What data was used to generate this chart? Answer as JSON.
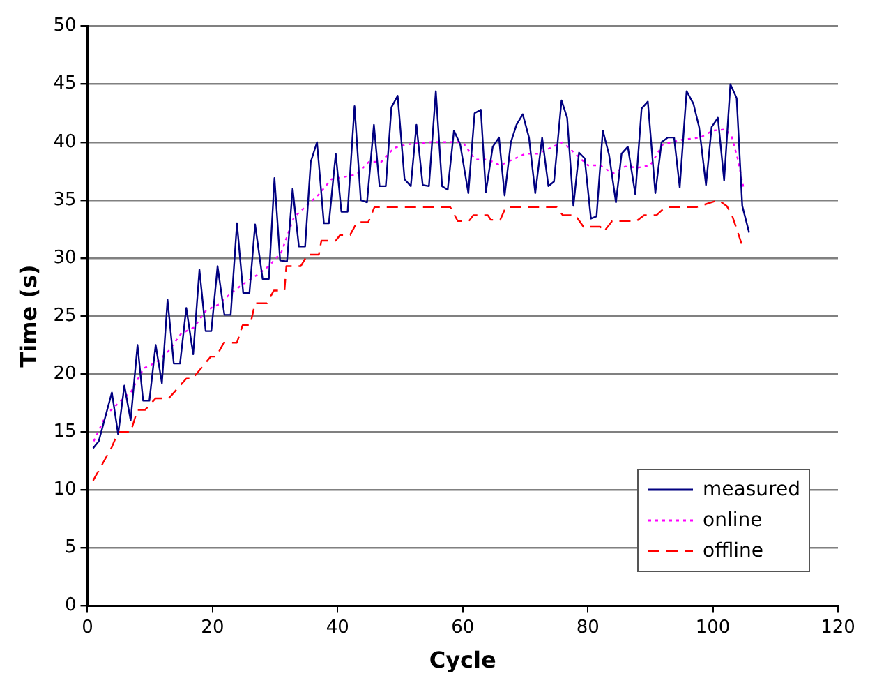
{
  "chart_data": {
    "type": "line",
    "xlabel": "Cycle",
    "ylabel": "Time (s)",
    "xlim": [
      0,
      120
    ],
    "xticks": [
      0,
      20,
      40,
      60,
      80,
      100,
      120
    ],
    "ylim": [
      0,
      50
    ],
    "yticks": [
      0,
      5,
      10,
      15,
      20,
      25,
      30,
      35,
      40,
      45,
      50
    ],
    "grid": "y",
    "legend": "bottom right",
    "marker": "none",
    "series": [
      {
        "name": "measured",
        "color": "#000080",
        "line_style": "solid",
        "x": [
          0.9,
          1.8,
          3.9,
          4.9,
          5.9,
          6.9,
          8,
          8.9,
          9.9,
          10.9,
          11.9,
          12.8,
          13.8,
          14.8,
          15.8,
          16.9,
          17.9,
          18.9,
          19.8,
          20.8,
          21.9,
          22.9,
          23.9,
          24.9,
          25.9,
          26.8,
          28,
          29,
          29.9,
          30.8,
          31.9,
          32.8,
          33.8,
          34.8,
          35.7,
          36.7,
          37.8,
          38.6,
          39.7,
          40.6,
          41.6,
          42.7,
          43.7,
          44.7,
          45.8,
          46.7,
          47.7,
          48.6,
          49.6,
          50.7,
          51.7,
          52.6,
          53.6,
          54.6,
          55.7,
          56.7,
          57.6,
          58.6,
          59.6,
          60.9,
          61.9,
          62.9,
          63.7,
          64.8,
          65.8,
          66.7,
          67.7,
          68.6,
          69.6,
          70.6,
          71.6,
          72.7,
          73.7,
          74.6,
          75.8,
          76.7,
          77.7,
          78.6,
          79.5,
          80.5,
          81.4,
          82.4,
          83.4,
          84.5,
          85.4,
          86.4,
          87.6,
          88.6,
          89.6,
          90.8,
          91.8,
          92.8,
          93.8,
          94.7,
          95.8,
          96.9,
          97.8,
          98.9,
          99.8,
          100.8,
          101.8,
          102.8,
          103.8,
          104.7,
          105.8
        ],
        "values": [
          13.6,
          14.2,
          18.4,
          14.8,
          19,
          16,
          22.5,
          17.7,
          17.7,
          22.5,
          19.2,
          26.4,
          20.9,
          20.9,
          25.7,
          21.7,
          29,
          23.7,
          23.7,
          29.3,
          25.1,
          25.1,
          33,
          27,
          27,
          32.9,
          28.2,
          28.2,
          36.9,
          29.8,
          29.7,
          36,
          31,
          31,
          38.3,
          40,
          33,
          33,
          39,
          34,
          34,
          43.1,
          35,
          34.8,
          41.5,
          36.2,
          36.2,
          43,
          44,
          36.8,
          36.2,
          41.5,
          36.3,
          36.2,
          44.4,
          36.2,
          35.9,
          41,
          39.8,
          35.6,
          42.5,
          42.8,
          35.7,
          39.6,
          40.4,
          35.4,
          40,
          41.5,
          42.4,
          40.4,
          35.6,
          40.4,
          36.2,
          36.6,
          43.6,
          42.1,
          34.5,
          39.1,
          38.6,
          33.4,
          33.6,
          41,
          38.9,
          34.8,
          39,
          39.6,
          35.5,
          42.9,
          43.5,
          35.6,
          40,
          40.4,
          40.4,
          36.1,
          44.4,
          43.3,
          41.3,
          36.3,
          41.3,
          42.1,
          36.7,
          45,
          43.8,
          34.5,
          32.2
        ]
      },
      {
        "name": "online",
        "color": "#ff00ff",
        "line_style": "dotted",
        "x": [
          1,
          3,
          5,
          7,
          9,
          11,
          13,
          15,
          17,
          19,
          21,
          23,
          25,
          27,
          29,
          31,
          33,
          35,
          37,
          39,
          41,
          43,
          45,
          47,
          49,
          51,
          55,
          60,
          62,
          64,
          66,
          68,
          70,
          72,
          76,
          78,
          80,
          82,
          84,
          86,
          88,
          90,
          92,
          95,
          98,
          100,
          102,
          103,
          104,
          105
        ],
        "values": [
          14.2,
          16.5,
          17.5,
          18.5,
          20.5,
          21,
          22,
          23.5,
          24,
          25.5,
          26,
          27,
          27.8,
          28.5,
          29.3,
          30.5,
          33.5,
          34.5,
          35.5,
          36.8,
          37,
          37.2,
          38.3,
          38.3,
          39.5,
          39.8,
          40,
          40,
          38.5,
          38.5,
          38,
          38.5,
          39,
          39,
          40,
          39,
          38,
          38,
          37.3,
          37.9,
          37.8,
          38,
          39.8,
          40.2,
          40.4,
          41,
          41.1,
          40.5,
          38.5,
          35.8
        ]
      },
      {
        "name": "offline",
        "color": "#ff0000",
        "line_style": "dashed",
        "x": [
          0.9,
          3.9,
          4.9,
          6.9,
          8,
          9.2,
          10.9,
          13,
          15.8,
          16.8,
          19.7,
          20.6,
          21.8,
          23.9,
          24.8,
          26,
          26.8,
          28.7,
          29.8,
          31.5,
          31.8,
          34.1,
          35.2,
          37,
          37.4,
          39.7,
          40.4,
          42,
          43.1,
          44.9,
          45.9,
          58,
          59.2,
          61,
          61.7,
          64,
          64.5,
          66,
          66.9,
          75,
          76,
          78,
          79.3,
          82,
          82.6,
          83.9,
          87.8,
          89,
          91,
          92.4,
          97.4,
          100.9,
          102.2,
          103,
          104.8
        ],
        "values": [
          10.8,
          13.7,
          15,
          15,
          16.9,
          16.9,
          17.9,
          17.9,
          19.6,
          19.6,
          21.5,
          21.5,
          22.7,
          22.7,
          24.2,
          24.2,
          26.1,
          26.1,
          27.2,
          27.2,
          29.3,
          29.3,
          30.3,
          30.3,
          31.5,
          31.5,
          32,
          32,
          33.1,
          33.1,
          34.4,
          34.4,
          33.2,
          33.2,
          33.7,
          33.7,
          33.3,
          33.3,
          34.4,
          34.4,
          33.7,
          33.7,
          32.7,
          32.7,
          32.3,
          33.2,
          33.2,
          33.7,
          33.7,
          34.4,
          34.4,
          35,
          34.5,
          33.8,
          30.9
        ]
      }
    ]
  }
}
